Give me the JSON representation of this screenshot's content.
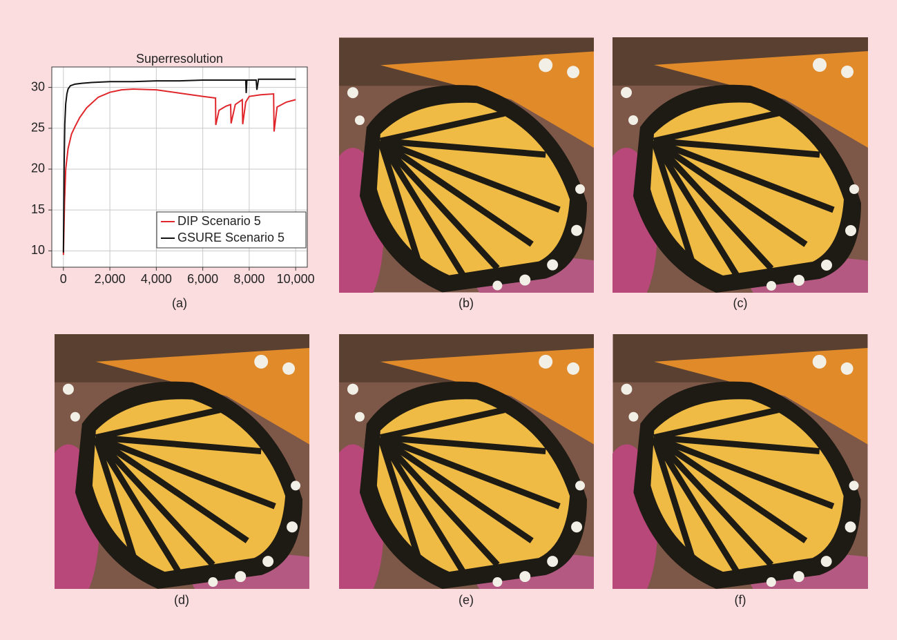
{
  "chart_data": {
    "type": "line",
    "title": "Superresolution",
    "xlim": [
      -500,
      10500
    ],
    "ylim": [
      8,
      32.5
    ],
    "xticks": [
      0,
      {
        "value": 2000,
        "label": "2,000"
      },
      {
        "value": 4000,
        "label": "4,000"
      },
      {
        "value": 6000,
        "label": "6,000"
      },
      {
        "value": 8000,
        "label": "8,000"
      },
      {
        "value": 10000,
        "label": "10,000"
      }
    ],
    "yticks": [
      10,
      15,
      20,
      25,
      30
    ],
    "grid": true,
    "legend": "lower right",
    "series": [
      {
        "name": "DIP Scenario 5",
        "color": "#e0262b",
        "x": [
          0,
          50,
          100,
          200,
          350,
          500,
          700,
          1000,
          1500,
          2000,
          2500,
          3000,
          4000,
          5000,
          6000,
          6550,
          6560,
          6700,
          7000,
          7200,
          7220,
          7400,
          7700,
          7720,
          7850,
          8000,
          8500,
          9050,
          9070,
          9200,
          9600,
          10000
        ],
        "values": [
          9.5,
          16,
          20,
          22.5,
          24.3,
          25.2,
          26.3,
          27.5,
          28.8,
          29.4,
          29.7,
          29.8,
          29.7,
          29.3,
          28.9,
          28.7,
          25.4,
          27.2,
          27.7,
          27.9,
          25.6,
          27.9,
          28.5,
          25.5,
          28.2,
          28.9,
          29.1,
          29.2,
          24.6,
          27.6,
          28.2,
          28.5
        ]
      },
      {
        "name": "GSURE Scenario 5",
        "color": "#111111",
        "x": [
          0,
          30,
          60,
          100,
          150,
          200,
          300,
          500,
          800,
          1200,
          2000,
          3000,
          4000,
          5000,
          6000,
          7000,
          7850,
          7870,
          7900,
          8000,
          8300,
          8330,
          8400,
          9000,
          10000
        ],
        "values": [
          9.8,
          20,
          25.5,
          28,
          29.2,
          29.8,
          30.2,
          30.4,
          30.5,
          30.6,
          30.7,
          30.7,
          30.8,
          30.8,
          30.9,
          30.9,
          30.9,
          29.3,
          30.9,
          30.9,
          30.9,
          29.7,
          31,
          31,
          31
        ]
      }
    ]
  },
  "panels": {
    "labels": [
      "(a)",
      "(b)",
      "(c)",
      "(d)",
      "(e)",
      "(f)"
    ]
  }
}
